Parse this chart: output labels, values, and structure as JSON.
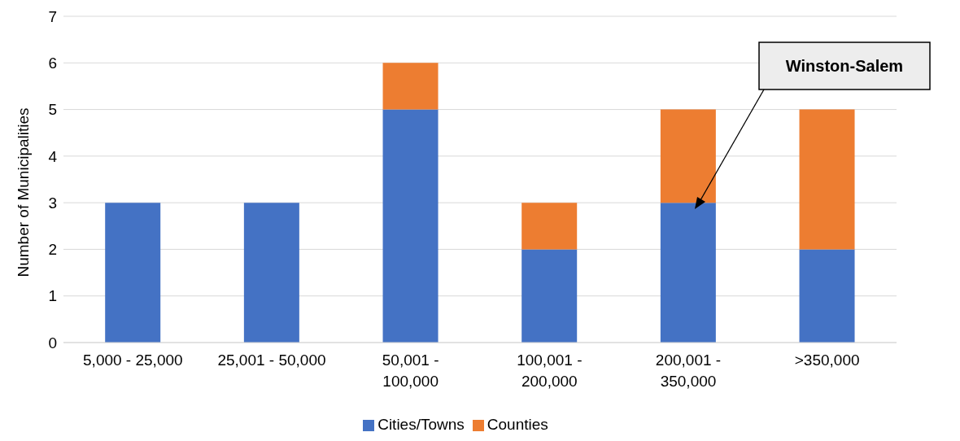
{
  "chart_data": {
    "type": "bar",
    "stacked": true,
    "ylabel": "Number of Municipalities",
    "categories": [
      "5,000 - 25,000",
      "25,001 - 50,000",
      "50,001 - 100,000",
      "100,001 - 200,000",
      "200,001 - 350,000",
      ">350,000"
    ],
    "series": [
      {
        "name": "Cities/Towns",
        "color": "#4472c4",
        "values": [
          3,
          3,
          5,
          2,
          3,
          2
        ]
      },
      {
        "name": "Counties",
        "color": "#ed7d31",
        "values": [
          0,
          0,
          1,
          1,
          2,
          3
        ]
      }
    ],
    "ylim": [
      0,
      7
    ],
    "yticks": [
      0,
      1,
      2,
      3,
      4,
      5,
      6,
      7
    ],
    "grid": "y",
    "legend": "bottom",
    "annotations": [
      "Winston-Salem"
    ]
  }
}
